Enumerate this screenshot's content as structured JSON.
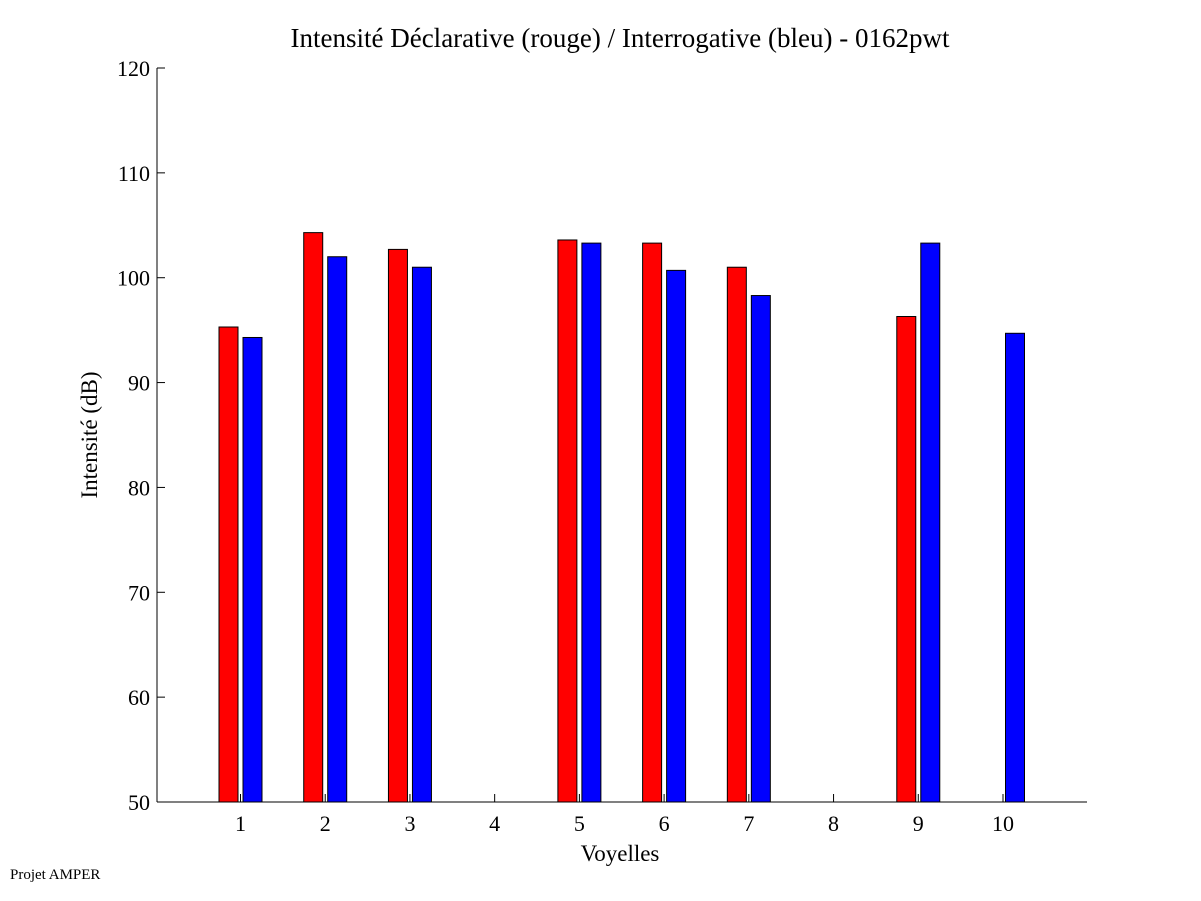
{
  "chart_data": {
    "type": "bar",
    "title": "Intensité Déclarative (rouge) / Interrogative (bleu) - 0162pwt",
    "xlabel": "Voyelles",
    "ylabel": "Intensité (dB)",
    "ylim": [
      50,
      120
    ],
    "yticks": [
      50,
      60,
      70,
      80,
      90,
      100,
      110,
      120
    ],
    "categories": [
      "1",
      "2",
      "3",
      "4",
      "5",
      "6",
      "7",
      "8",
      "9",
      "10"
    ],
    "series": [
      {
        "name": "Déclarative",
        "color": "#ff0000",
        "values": [
          95.3,
          104.3,
          102.7,
          null,
          103.6,
          103.3,
          101.0,
          null,
          96.3,
          null
        ]
      },
      {
        "name": "Interrogative",
        "color": "#0000ff",
        "values": [
          94.3,
          102.0,
          101.0,
          null,
          103.3,
          100.7,
          98.3,
          null,
          103.3,
          94.7
        ]
      }
    ]
  },
  "footer": "Projet AMPER"
}
